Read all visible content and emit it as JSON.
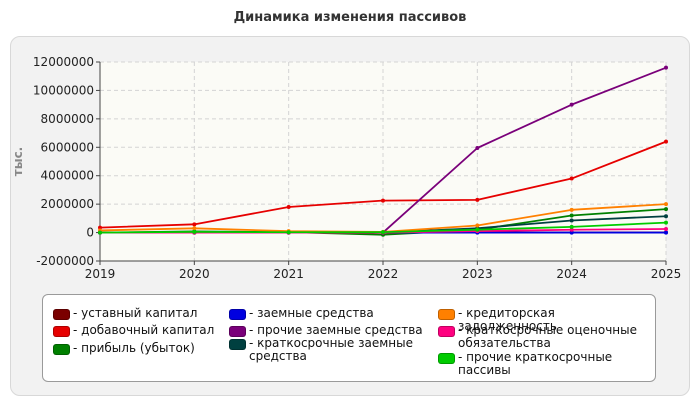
{
  "chart_data": {
    "type": "line",
    "title": "Динамика изменения пассивов",
    "ylabel": "тыс.",
    "xlabel": "",
    "x": [
      2019,
      2020,
      2021,
      2022,
      2023,
      2024,
      2025
    ],
    "x_ticks": [
      "2019",
      "2020",
      "2021",
      "2022",
      "2023",
      "2024",
      "2025"
    ],
    "ylim": [
      -2000000,
      12000000
    ],
    "y_ticks": [
      "-2000000",
      "0",
      "2000000",
      "4000000",
      "6000000",
      "8000000",
      "10000000",
      "12000000"
    ],
    "grid": true,
    "legend_position": "bottom",
    "series": [
      {
        "name": "уставный капитал",
        "color": "#7b0000",
        "values": [
          10000,
          10000,
          10000,
          10000,
          10000,
          10000,
          10000
        ]
      },
      {
        "name": "добавочный капитал",
        "color": "#e60000",
        "values": [
          350000,
          580000,
          1800000,
          2250000,
          2300000,
          3800000,
          6400000
        ]
      },
      {
        "name": "прибыль (убыток)",
        "color": "#008000",
        "values": [
          0,
          80000,
          30000,
          -150000,
          200000,
          1200000,
          1650000
        ]
      },
      {
        "name": "заемные средства",
        "color": "#0000e0",
        "values": [
          0,
          0,
          0,
          0,
          0,
          0,
          0
        ]
      },
      {
        "name": "прочие заемные средства",
        "color": "#7a007a",
        "values": [
          0,
          0,
          0,
          0,
          5950000,
          9000000,
          11600000
        ]
      },
      {
        "name": "краткосрочные заемные средства",
        "color": "#004040",
        "values": [
          0,
          0,
          0,
          0,
          300000,
          850000,
          1150000
        ]
      },
      {
        "name": "кредиторская задолженность",
        "color": "#ff8000",
        "values": [
          150000,
          300000,
          100000,
          50000,
          500000,
          1600000,
          2000000
        ]
      },
      {
        "name": "краткосрочные оценочные обязательства",
        "color": "#ff0080",
        "values": [
          0,
          0,
          0,
          0,
          100000,
          200000,
          250000
        ]
      },
      {
        "name": "прочие краткосрочные пассивы",
        "color": "#00cc00",
        "values": [
          0,
          50000,
          20000,
          30000,
          200000,
          400000,
          700000
        ]
      }
    ]
  }
}
